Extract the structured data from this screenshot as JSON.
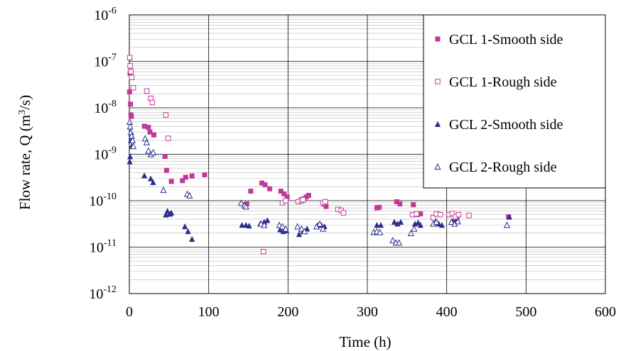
{
  "chart_data": {
    "type": "scatter",
    "title": "",
    "xlabel": "Time (h)",
    "ylabel": {
      "main": "Flow rate, Q (m",
      "sup": "3",
      "end": "/s)"
    },
    "xlim": [
      0,
      600
    ],
    "ylim": [
      1e-12,
      1e-06
    ],
    "y_scale": "log",
    "x_ticks": [
      0,
      100,
      200,
      300,
      400,
      500,
      600
    ],
    "y_ticks": [
      {
        "base": "10",
        "exp": "-12"
      },
      {
        "base": "10",
        "exp": "-11"
      },
      {
        "base": "10",
        "exp": "-10"
      },
      {
        "base": "10",
        "exp": "-9"
      },
      {
        "base": "10",
        "exp": "-8"
      },
      {
        "base": "10",
        "exp": "-7"
      },
      {
        "base": "10",
        "exp": "-6"
      }
    ],
    "grid": true,
    "legend_position": "top-right",
    "series": [
      {
        "name": "GCL 1-Smooth side",
        "marker": "square-filled",
        "color": "#c0399a",
        "points": [
          [
            0.3,
            2.2e-08
          ],
          [
            1,
            5.5e-08
          ],
          [
            1.5,
            1.2e-08
          ],
          [
            2,
            7e-09
          ],
          [
            2.5,
            6.5e-09
          ],
          [
            19,
            4e-09
          ],
          [
            24,
            3.8e-09
          ],
          [
            26,
            3e-09
          ],
          [
            31,
            2.6e-09
          ],
          [
            45,
            9e-10
          ],
          [
            47,
            4.5e-10
          ],
          [
            53,
            2.6e-10
          ],
          [
            67,
            2.7e-10
          ],
          [
            71,
            3.2e-10
          ],
          [
            79,
            3.4e-10
          ],
          [
            95,
            3.6e-10
          ],
          [
            145,
            8e-11
          ],
          [
            148,
            8.5e-11
          ],
          [
            153,
            1.6e-10
          ],
          [
            167,
            2.4e-10
          ],
          [
            171,
            2.2e-10
          ],
          [
            177,
            1.8e-10
          ],
          [
            191,
            1.6e-10
          ],
          [
            195,
            1.4e-10
          ],
          [
            199,
            1.2e-10
          ],
          [
            217,
            1.05e-10
          ],
          [
            220,
            1.1e-10
          ],
          [
            223,
            1.2e-10
          ],
          [
            226,
            1.3e-10
          ],
          [
            245,
            8.5e-11
          ],
          [
            248,
            7.5e-11
          ],
          [
            312,
            7e-11
          ],
          [
            315,
            7.2e-11
          ],
          [
            337,
            9.5e-11
          ],
          [
            341,
            8.5e-11
          ],
          [
            358,
            8.2e-11
          ],
          [
            363,
            5e-11
          ],
          [
            367,
            5.2e-11
          ],
          [
            409,
            3.5e-11
          ],
          [
            413,
            4e-11
          ],
          [
            478,
            4.5e-11
          ]
        ]
      },
      {
        "name": "GCL 1-Rough side",
        "marker": "square-open",
        "color": "#c0399a",
        "points": [
          [
            0.5,
            1.2e-07
          ],
          [
            1,
            8e-08
          ],
          [
            2,
            6e-08
          ],
          [
            3,
            4.5e-08
          ],
          [
            5,
            2.7e-08
          ],
          [
            22,
            2.3e-08
          ],
          [
            27,
            1.6e-08
          ],
          [
            29,
            1.3e-08
          ],
          [
            46,
            7e-09
          ],
          [
            49,
            2.2e-09
          ],
          [
            169,
            8e-12
          ],
          [
            193,
            9e-11
          ],
          [
            197,
            1e-10
          ],
          [
            213,
            9.5e-11
          ],
          [
            217,
            1e-10
          ],
          [
            219,
            1.05e-10
          ],
          [
            244,
            9e-11
          ],
          [
            247,
            9.5e-11
          ],
          [
            263,
            6.5e-11
          ],
          [
            267,
            6.2e-11
          ],
          [
            270,
            5.5e-11
          ],
          [
            357,
            5e-11
          ],
          [
            362,
            5.2e-11
          ],
          [
            383,
            4.3e-11
          ],
          [
            387,
            5.2e-11
          ],
          [
            392,
            5e-11
          ],
          [
            403,
            5e-11
          ],
          [
            407,
            5.3e-11
          ],
          [
            411,
            4.5e-11
          ],
          [
            415,
            5e-11
          ],
          [
            428,
            4.8e-11
          ]
        ]
      },
      {
        "name": "GCL 2-Smooth side",
        "marker": "triangle-filled",
        "color": "#2b2e8c",
        "points": [
          [
            0.5,
            7e-10
          ],
          [
            1,
            9e-10
          ],
          [
            2,
            2e-09
          ],
          [
            3,
            1.5e-09
          ],
          [
            19,
            3.5e-10
          ],
          [
            27,
            3e-10
          ],
          [
            30,
            2.5e-10
          ],
          [
            46,
            5e-11
          ],
          [
            48,
            6e-11
          ],
          [
            51,
            5.2e-11
          ],
          [
            53,
            5.5e-11
          ],
          [
            70,
            2.8e-11
          ],
          [
            74,
            2.2e-11
          ],
          [
            79,
            1.5e-11
          ],
          [
            142,
            3e-11
          ],
          [
            147,
            3e-11
          ],
          [
            151,
            2.9e-11
          ],
          [
            165,
            3.2e-11
          ],
          [
            170,
            3.5e-11
          ],
          [
            174,
            3.8e-11
          ],
          [
            190,
            2.4e-11
          ],
          [
            194,
            2.2e-11
          ],
          [
            198,
            2.3e-11
          ],
          [
            214,
            1.9e-11
          ],
          [
            219,
            2.2e-11
          ],
          [
            224,
            2.5e-11
          ],
          [
            238,
            3e-11
          ],
          [
            242,
            3e-11
          ],
          [
            246,
            2.8e-11
          ],
          [
            312,
            3e-11
          ],
          [
            317,
            3e-11
          ],
          [
            334,
            3.5e-11
          ],
          [
            338,
            3.2e-11
          ],
          [
            342,
            3.5e-11
          ],
          [
            360,
            3.2e-11
          ],
          [
            364,
            3.4e-11
          ],
          [
            367,
            3e-11
          ],
          [
            386,
            3.5e-11
          ],
          [
            390,
            3.2e-11
          ],
          [
            394,
            3e-11
          ],
          [
            408,
            3.5e-11
          ],
          [
            412,
            3.6e-11
          ],
          [
            479,
            4.5e-11
          ]
        ]
      },
      {
        "name": "GCL 2-Rough side",
        "marker": "triangle-open",
        "color": "#2b2e8c",
        "points": [
          [
            0.5,
            5e-09
          ],
          [
            1,
            4e-09
          ],
          [
            2,
            3e-09
          ],
          [
            3,
            2.5e-09
          ],
          [
            4,
            2e-09
          ],
          [
            5,
            1.5e-09
          ],
          [
            20,
            2.2e-09
          ],
          [
            22,
            1.8e-09
          ],
          [
            24,
            1.2e-09
          ],
          [
            27,
            1e-09
          ],
          [
            30,
            1.1e-09
          ],
          [
            43,
            1.7e-10
          ],
          [
            73,
            1.4e-10
          ],
          [
            76,
            1.3e-10
          ],
          [
            141,
            9e-11
          ],
          [
            145,
            8e-11
          ],
          [
            147,
            7.5e-11
          ],
          [
            166,
            3.2e-11
          ],
          [
            170,
            3e-11
          ],
          [
            189,
            3e-11
          ],
          [
            193,
            2.8e-11
          ],
          [
            197,
            2.5e-11
          ],
          [
            212,
            2.8e-11
          ],
          [
            217,
            2.5e-11
          ],
          [
            221,
            2.2e-11
          ],
          [
            236,
            2.8e-11
          ],
          [
            240,
            3.2e-11
          ],
          [
            244,
            2.5e-11
          ],
          [
            308,
            2.1e-11
          ],
          [
            312,
            2.2e-11
          ],
          [
            316,
            2.1e-11
          ],
          [
            332,
            1.4e-11
          ],
          [
            336,
            1.25e-11
          ],
          [
            340,
            1.25e-11
          ],
          [
            355,
            2e-11
          ],
          [
            359,
            2.5e-11
          ],
          [
            383,
            3.2e-11
          ],
          [
            387,
            3.5e-11
          ],
          [
            406,
            3.5e-11
          ],
          [
            410,
            3.2e-11
          ],
          [
            414,
            3.6e-11
          ],
          [
            476,
            3e-11
          ]
        ]
      }
    ]
  }
}
